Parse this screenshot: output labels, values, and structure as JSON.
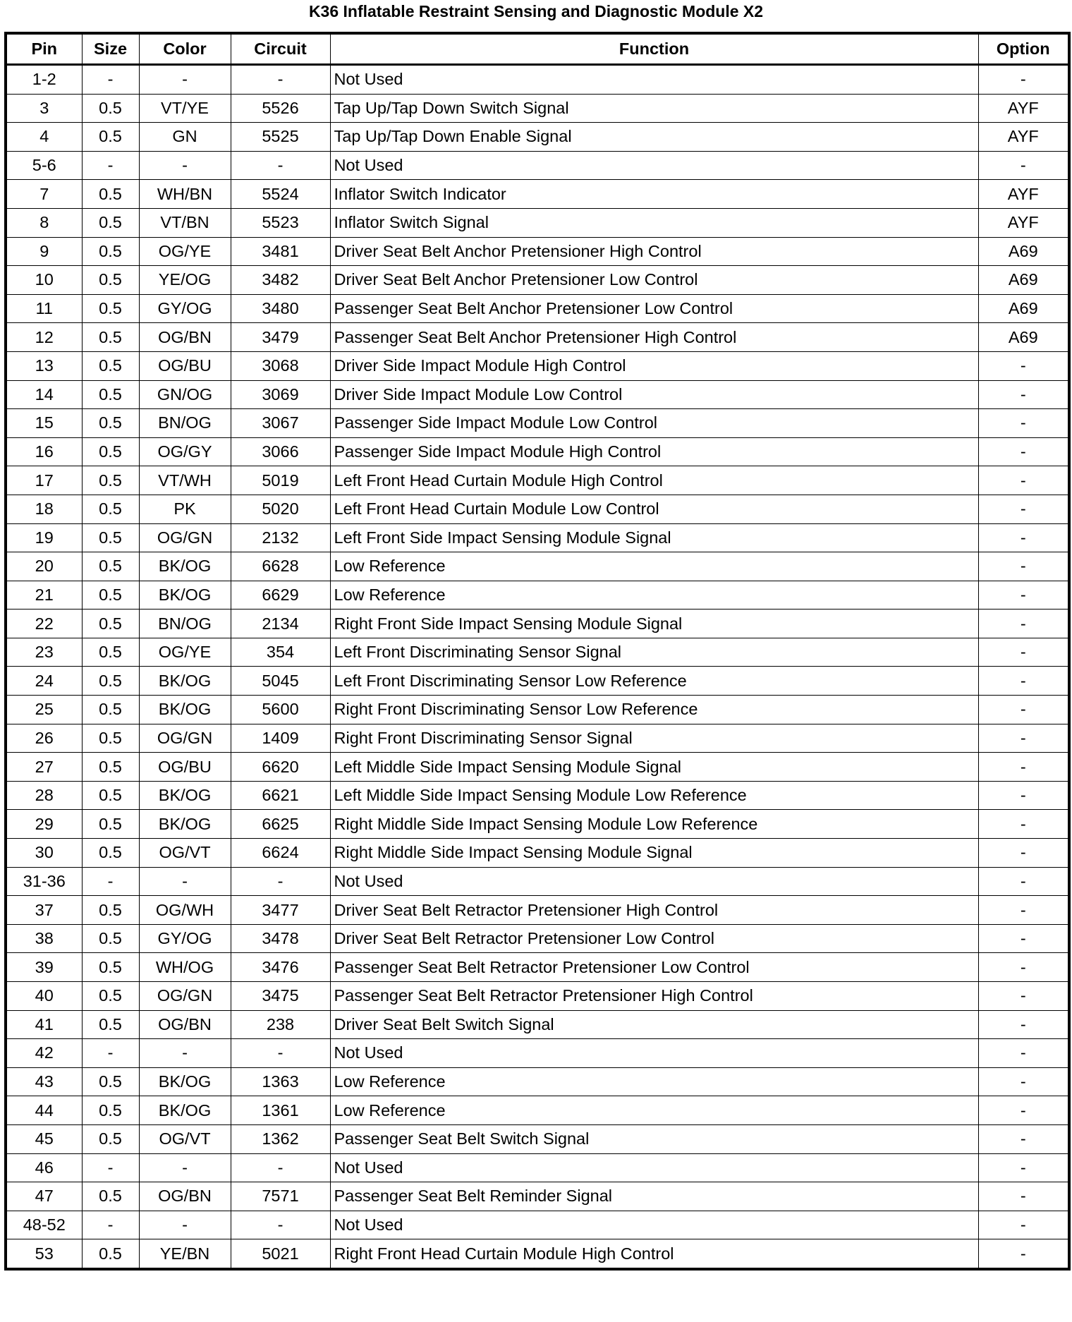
{
  "title": "K36 Inflatable Restraint Sensing and Diagnostic Module X2",
  "columns": [
    "Pin",
    "Size",
    "Color",
    "Circuit",
    "Function",
    "Option"
  ],
  "rows": [
    [
      "1-2",
      "-",
      "-",
      "-",
      "Not Used",
      "-"
    ],
    [
      "3",
      "0.5",
      "VT/YE",
      "5526",
      "Tap Up/Tap Down Switch Signal",
      "AYF"
    ],
    [
      "4",
      "0.5",
      "GN",
      "5525",
      "Tap Up/Tap Down Enable Signal",
      "AYF"
    ],
    [
      "5-6",
      "-",
      "-",
      "-",
      "Not Used",
      "-"
    ],
    [
      "7",
      "0.5",
      "WH/BN",
      "5524",
      "Inflator Switch Indicator",
      "AYF"
    ],
    [
      "8",
      "0.5",
      "VT/BN",
      "5523",
      "Inflator Switch Signal",
      "AYF"
    ],
    [
      "9",
      "0.5",
      "OG/YE",
      "3481",
      "Driver Seat Belt Anchor Pretensioner High Control",
      "A69"
    ],
    [
      "10",
      "0.5",
      "YE/OG",
      "3482",
      "Driver Seat Belt Anchor Pretensioner Low Control",
      "A69"
    ],
    [
      "11",
      "0.5",
      "GY/OG",
      "3480",
      "Passenger Seat Belt Anchor Pretensioner Low Control",
      "A69"
    ],
    [
      "12",
      "0.5",
      "OG/BN",
      "3479",
      "Passenger Seat Belt Anchor Pretensioner High Control",
      "A69"
    ],
    [
      "13",
      "0.5",
      "OG/BU",
      "3068",
      "Driver Side Impact Module High Control",
      "-"
    ],
    [
      "14",
      "0.5",
      "GN/OG",
      "3069",
      "Driver Side Impact Module Low Control",
      "-"
    ],
    [
      "15",
      "0.5",
      "BN/OG",
      "3067",
      "Passenger Side Impact Module Low Control",
      "-"
    ],
    [
      "16",
      "0.5",
      "OG/GY",
      "3066",
      "Passenger Side Impact Module High Control",
      "-"
    ],
    [
      "17",
      "0.5",
      "VT/WH",
      "5019",
      "Left Front Head Curtain Module High Control",
      "-"
    ],
    [
      "18",
      "0.5",
      "PK",
      "5020",
      "Left Front Head Curtain Module Low Control",
      "-"
    ],
    [
      "19",
      "0.5",
      "OG/GN",
      "2132",
      "Left Front Side Impact Sensing Module Signal",
      "-"
    ],
    [
      "20",
      "0.5",
      "BK/OG",
      "6628",
      "Low Reference",
      "-"
    ],
    [
      "21",
      "0.5",
      "BK/OG",
      "6629",
      "Low Reference",
      "-"
    ],
    [
      "22",
      "0.5",
      "BN/OG",
      "2134",
      "Right Front Side Impact Sensing Module Signal",
      "-"
    ],
    [
      "23",
      "0.5",
      "OG/YE",
      "354",
      "Left Front Discriminating Sensor Signal",
      "-"
    ],
    [
      "24",
      "0.5",
      "BK/OG",
      "5045",
      "Left Front Discriminating Sensor Low Reference",
      "-"
    ],
    [
      "25",
      "0.5",
      "BK/OG",
      "5600",
      "Right Front Discriminating Sensor Low Reference",
      "-"
    ],
    [
      "26",
      "0.5",
      "OG/GN",
      "1409",
      "Right Front Discriminating Sensor Signal",
      "-"
    ],
    [
      "27",
      "0.5",
      "OG/BU",
      "6620",
      "Left Middle Side Impact Sensing Module Signal",
      "-"
    ],
    [
      "28",
      "0.5",
      "BK/OG",
      "6621",
      "Left Middle Side Impact Sensing Module Low Reference",
      "-"
    ],
    [
      "29",
      "0.5",
      "BK/OG",
      "6625",
      "Right Middle Side Impact Sensing Module Low Reference",
      "-"
    ],
    [
      "30",
      "0.5",
      "OG/VT",
      "6624",
      "Right Middle Side Impact Sensing Module Signal",
      "-"
    ],
    [
      "31-36",
      "-",
      "-",
      "-",
      "Not Used",
      "-"
    ],
    [
      "37",
      "0.5",
      "OG/WH",
      "3477",
      "Driver Seat Belt Retractor Pretensioner High Control",
      "-"
    ],
    [
      "38",
      "0.5",
      "GY/OG",
      "3478",
      "Driver Seat Belt Retractor Pretensioner Low Control",
      "-"
    ],
    [
      "39",
      "0.5",
      "WH/OG",
      "3476",
      "Passenger Seat Belt Retractor Pretensioner Low Control",
      "-"
    ],
    [
      "40",
      "0.5",
      "OG/GN",
      "3475",
      "Passenger Seat Belt Retractor Pretensioner High Control",
      "-"
    ],
    [
      "41",
      "0.5",
      "OG/BN",
      "238",
      "Driver Seat Belt Switch Signal",
      "-"
    ],
    [
      "42",
      "-",
      "-",
      "-",
      "Not Used",
      "-"
    ],
    [
      "43",
      "0.5",
      "BK/OG",
      "1363",
      "Low Reference",
      "-"
    ],
    [
      "44",
      "0.5",
      "BK/OG",
      "1361",
      "Low Reference",
      "-"
    ],
    [
      "45",
      "0.5",
      "OG/VT",
      "1362",
      "Passenger Seat Belt Switch Signal",
      "-"
    ],
    [
      "46",
      "-",
      "-",
      "-",
      "Not Used",
      "-"
    ],
    [
      "47",
      "0.5",
      "OG/BN",
      "7571",
      "Passenger Seat Belt Reminder Signal",
      "-"
    ],
    [
      "48-52",
      "-",
      "-",
      "-",
      "Not Used",
      "-"
    ],
    [
      "53",
      "0.5",
      "YE/BN",
      "5021",
      "Right Front Head Curtain Module High Control",
      "-"
    ]
  ]
}
